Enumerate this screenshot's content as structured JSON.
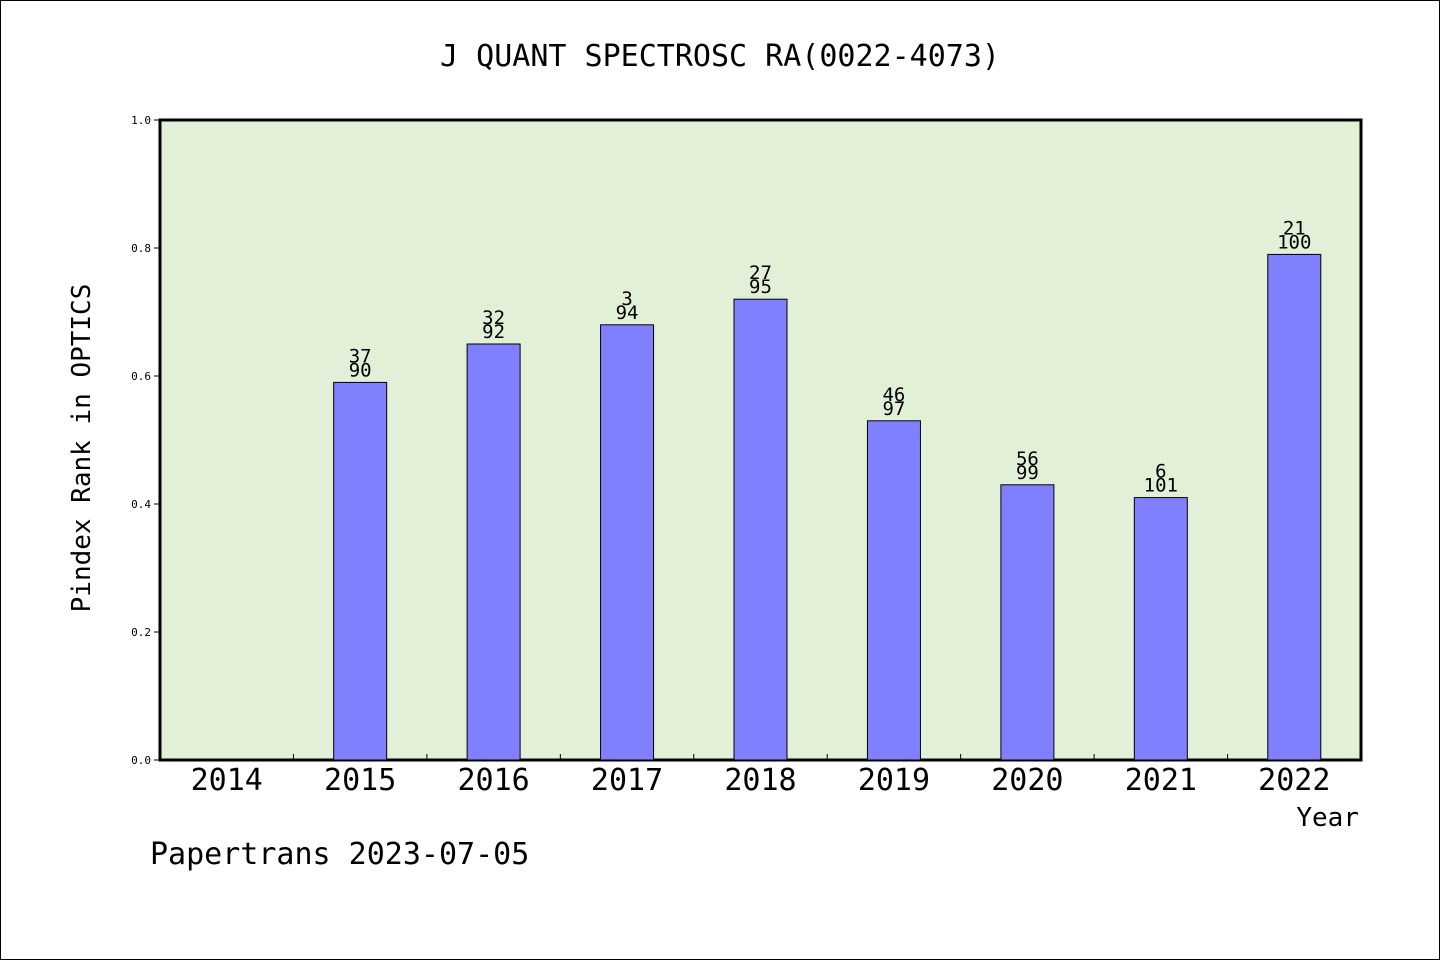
{
  "chart_data": {
    "type": "bar",
    "title": "J QUANT SPECTROSC RA(0022-4073)",
    "xlabel": "Year",
    "ylabel": "Pindex Rank in OPTICS",
    "footer": "Papertrans 2023-07-05",
    "categories": [
      "2014",
      "2015",
      "2016",
      "2017",
      "2018",
      "2019",
      "2020",
      "2021",
      "2022"
    ],
    "values": [
      null,
      0.59,
      0.65,
      0.68,
      0.72,
      0.53,
      0.43,
      0.41,
      0.79
    ],
    "label_top": [
      "",
      "37",
      "32",
      "3",
      "27",
      "46",
      "56",
      "6",
      "21"
    ],
    "label_bottom": [
      "",
      "90",
      "92",
      "94",
      "95",
      "97",
      "99",
      "101",
      "100"
    ],
    "ylim": [
      0,
      1.0
    ],
    "yticks": [
      "0.0",
      "0.2",
      "0.4",
      "0.6",
      "0.8",
      "1.0"
    ],
    "grid": false,
    "colors": {
      "plot_background": "#e2f0d8",
      "bar_fill": "#8080ff",
      "bar_stroke": "#000000",
      "axis": "#000000"
    }
  }
}
